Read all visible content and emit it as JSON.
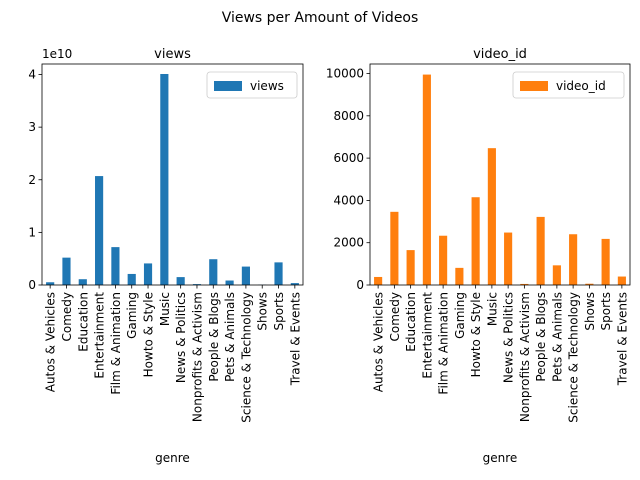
{
  "figure_title": "Views per Amount of Videos",
  "chart_data": [
    {
      "type": "bar",
      "title": "views",
      "xlabel": "genre",
      "ylabel": "",
      "y_offset_label": "1e10",
      "ylim": [
        0,
        42000000000
      ],
      "y_ticks": [
        0,
        10000000000,
        20000000000,
        30000000000,
        40000000000
      ],
      "y_tick_labels": [
        "0",
        "1",
        "2",
        "3",
        "4"
      ],
      "legend_position": "top-right",
      "categories": [
        "Autos & Vehicles",
        "Comedy",
        "Education",
        "Entertainment",
        "Film & Animation",
        "Gaming",
        "Howto & Style",
        "Music",
        "News & Politics",
        "Nonprofits & Activism",
        "People & Blogs",
        "Pets & Animals",
        "Science & Technology",
        "Shows",
        "Sports",
        "Travel & Events"
      ],
      "series": [
        {
          "name": "views",
          "color": "#1f77b4",
          "values": [
            520000000,
            5200000000,
            1100000000,
            20700000000,
            7200000000,
            2100000000,
            4100000000,
            40100000000,
            1500000000,
            170000000,
            4900000000,
            850000000,
            3500000000,
            50000000,
            4300000000,
            360000000
          ]
        }
      ]
    },
    {
      "type": "bar",
      "title": "video_id",
      "xlabel": "genre",
      "ylabel": "",
      "ylim": [
        0,
        10450
      ],
      "y_ticks": [
        0,
        2000,
        4000,
        6000,
        8000,
        10000
      ],
      "y_tick_labels": [
        "0",
        "2000",
        "4000",
        "6000",
        "8000",
        "10000"
      ],
      "legend_position": "top-right",
      "categories": [
        "Autos & Vehicles",
        "Comedy",
        "Education",
        "Entertainment",
        "Film & Animation",
        "Gaming",
        "Howto & Style",
        "Music",
        "News & Politics",
        "Nonprofits & Activism",
        "People & Blogs",
        "Pets & Animals",
        "Science & Technology",
        "Shows",
        "Sports",
        "Travel & Events"
      ],
      "series": [
        {
          "name": "video_id",
          "color": "#ff7f0e",
          "values": [
            380,
            3460,
            1650,
            9950,
            2330,
            810,
            4150,
            6470,
            2480,
            50,
            3220,
            930,
            2400,
            60,
            2180,
            400
          ]
        }
      ]
    }
  ]
}
